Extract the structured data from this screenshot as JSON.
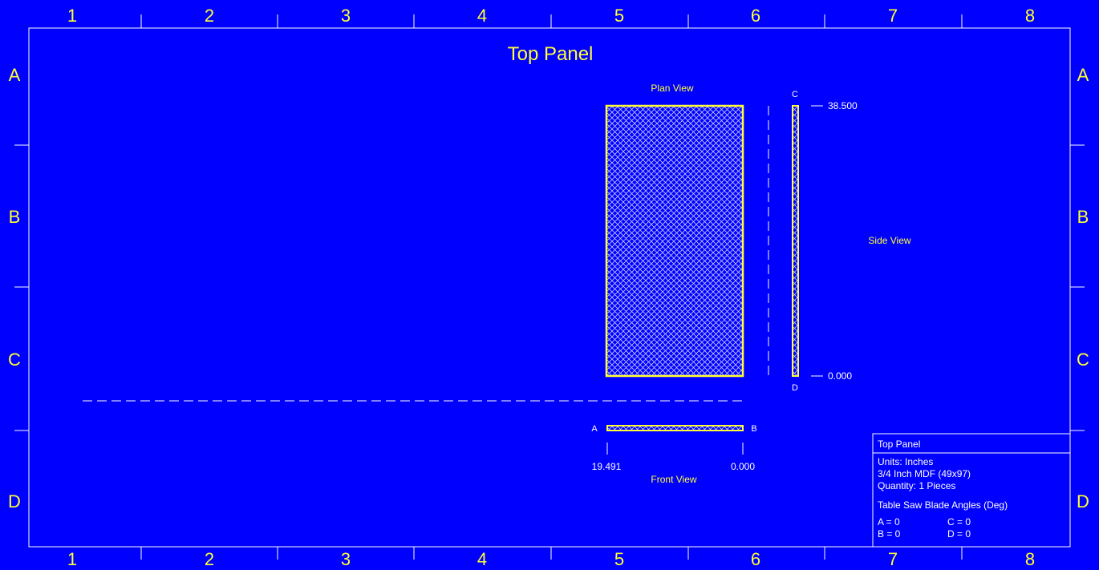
{
  "drawing": {
    "title": "Top Panel",
    "column_labels": [
      "1",
      "2",
      "3",
      "4",
      "5",
      "6",
      "7",
      "8"
    ],
    "row_labels": [
      "A",
      "B",
      "C",
      "D"
    ]
  },
  "views": {
    "plan_view_label": "Plan View",
    "side_view_label": "Side View",
    "front_view_label": "Front View"
  },
  "dimensions": {
    "side_top": "38.500",
    "side_bottom": "0.000",
    "front_left": "19.491",
    "front_right": "0.000"
  },
  "edge_labels": {
    "a": "A",
    "b": "B",
    "c": "C",
    "d": "D"
  },
  "title_block": {
    "name": "Top Panel",
    "units": "Units: Inches",
    "material": "3/4 Inch MDF (49x97)",
    "quantity": "Quantity: 1 Pieces",
    "angles_heading": "Table Saw Blade Angles (Deg)",
    "angle_a": "A = 0",
    "angle_c": "C = 0",
    "angle_b": "B = 0",
    "angle_d": "D = 0"
  },
  "colors": {
    "background": "#0000ff",
    "ink": "#ffff33",
    "lines": "#ffffff"
  }
}
